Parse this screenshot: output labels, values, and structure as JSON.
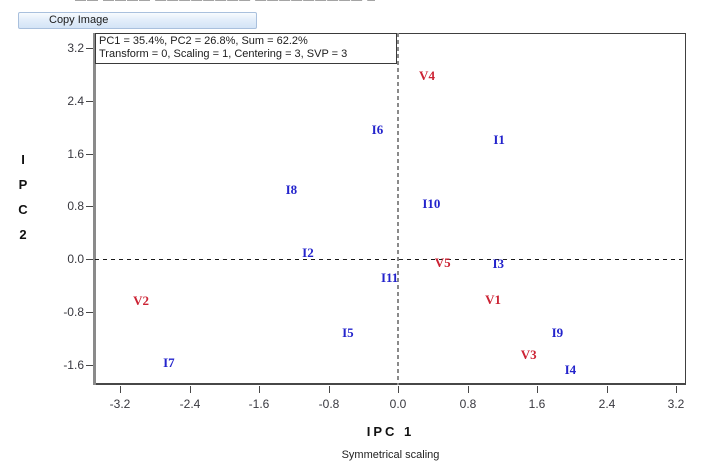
{
  "header": {
    "clipped_text": "—— ———— ———————— ————————— ———— — ————"
  },
  "toolbar": {
    "copy_image_label": "Copy Image"
  },
  "chart_data": {
    "type": "scatter",
    "annotation": {
      "line1": "PC1 = 35.4%, PC2 = 26.8%, Sum = 62.2%",
      "line2": "Transform = 0, Scaling = 1, Centering = 3, SVP = 3"
    },
    "xlabel": "IPC 1",
    "x_sublabel": "Symmetrical scaling",
    "ylabel": "IPC 2",
    "ylabel_stacked": [
      "I",
      "P",
      "C",
      "2"
    ],
    "x_tick_labels": [
      "-3.2",
      "-2.4",
      "-1.6",
      "-0.8",
      "0.0",
      "0.8",
      "1.6",
      "2.4",
      "3.2"
    ],
    "y_tick_labels": [
      "3.2",
      "2.4",
      "1.6",
      "0.8",
      "0.0",
      "-0.8",
      "-1.6"
    ],
    "xlim": [
      -3.49,
      3.31
    ],
    "ylim": [
      -1.91,
      3.43
    ],
    "grid": false,
    "zero_lines": {
      "horizontal_color": "#1a1a1a",
      "vertical_color": "#8a8a8a"
    },
    "series": [
      {
        "name": "varieties",
        "color": "#cc2233",
        "points": [
          {
            "label": "V1",
            "x": 1.09,
            "y": -0.62
          },
          {
            "label": "V2",
            "x": -2.96,
            "y": -0.64
          },
          {
            "label": "V3",
            "x": 1.5,
            "y": -1.46
          },
          {
            "label": "V4",
            "x": 0.33,
            "y": 2.78
          },
          {
            "label": "V5",
            "x": 0.51,
            "y": -0.06
          }
        ]
      },
      {
        "name": "environments",
        "color": "#2424cc",
        "points": [
          {
            "label": "I1",
            "x": 1.16,
            "y": 1.81
          },
          {
            "label": "I2",
            "x": -1.04,
            "y": 0.09
          },
          {
            "label": "I3",
            "x": 1.15,
            "y": -0.08
          },
          {
            "label": "I4",
            "x": 1.98,
            "y": -1.68
          },
          {
            "label": "I5",
            "x": -0.58,
            "y": -1.12
          },
          {
            "label": "I6",
            "x": -0.24,
            "y": 1.96
          },
          {
            "label": "I7",
            "x": -2.64,
            "y": -1.58
          },
          {
            "label": "I8",
            "x": -1.23,
            "y": 1.05
          },
          {
            "label": "I9",
            "x": 1.83,
            "y": -1.12
          },
          {
            "label": "I10",
            "x": 0.38,
            "y": 0.84
          },
          {
            "label": "I11",
            "x": -0.1,
            "y": -0.29
          }
        ]
      }
    ]
  }
}
